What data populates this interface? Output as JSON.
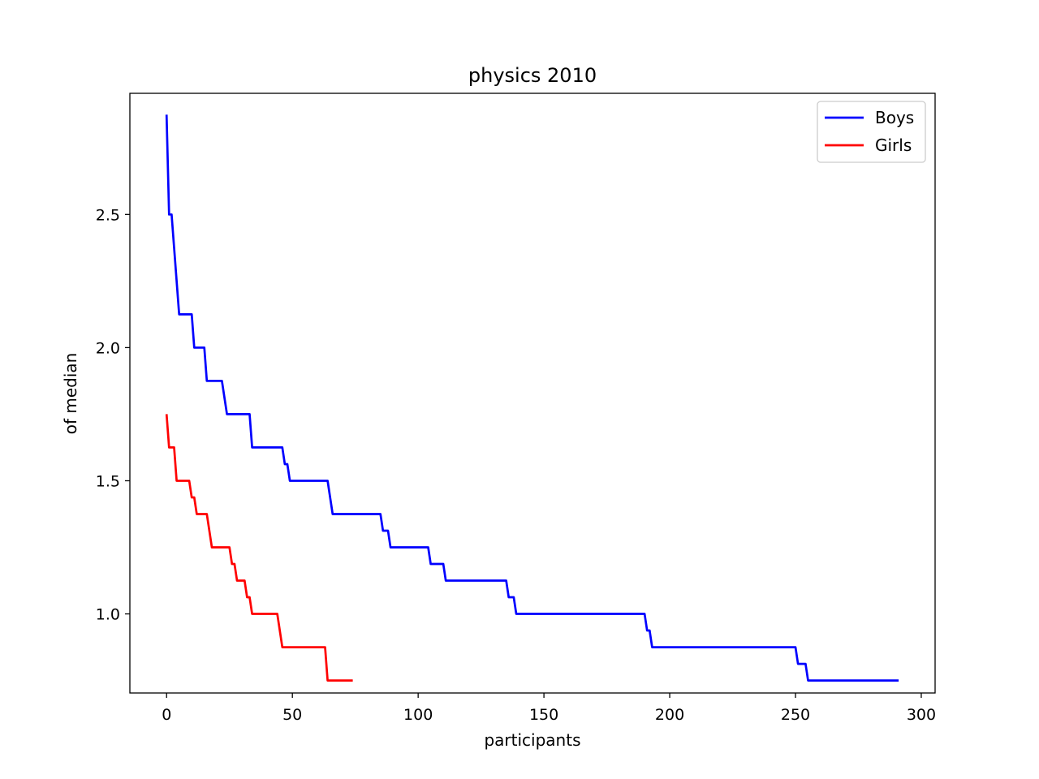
{
  "chart_data": {
    "type": "line",
    "title": "physics 2010",
    "xlabel": "participants",
    "ylabel": "of median",
    "xlim": [
      -14.6,
      305.5
    ],
    "ylim": [
      0.703,
      2.955
    ],
    "xticks": [
      0,
      50,
      100,
      150,
      200,
      250,
      300
    ],
    "yticks": [
      1.0,
      1.5,
      2.0,
      2.5
    ],
    "ytick_labels": [
      "1.0",
      "1.5",
      "2.0",
      "2.5"
    ],
    "grid": false,
    "legend_position": "top-right",
    "series": [
      {
        "name": "Boys",
        "color": "#0000ff",
        "points": [
          [
            0,
            2.875
          ],
          [
            1,
            2.5
          ],
          [
            2,
            2.5
          ],
          [
            5,
            2.125
          ],
          [
            10,
            2.125
          ],
          [
            11,
            2.0
          ],
          [
            15,
            2.0
          ],
          [
            16,
            1.875
          ],
          [
            22,
            1.875
          ],
          [
            24,
            1.75
          ],
          [
            33,
            1.75
          ],
          [
            34,
            1.625
          ],
          [
            46,
            1.625
          ],
          [
            47,
            1.5625
          ],
          [
            48,
            1.5625
          ],
          [
            49,
            1.5
          ],
          [
            64,
            1.5
          ],
          [
            66,
            1.375
          ],
          [
            85,
            1.375
          ],
          [
            86,
            1.3125
          ],
          [
            88,
            1.3125
          ],
          [
            89,
            1.25
          ],
          [
            104,
            1.25
          ],
          [
            105,
            1.1875
          ],
          [
            110,
            1.1875
          ],
          [
            111,
            1.125
          ],
          [
            135,
            1.125
          ],
          [
            136,
            1.0625
          ],
          [
            138,
            1.0625
          ],
          [
            139,
            1.0
          ],
          [
            190,
            1.0
          ],
          [
            191,
            0.9375
          ],
          [
            192,
            0.9375
          ],
          [
            193,
            0.875
          ],
          [
            250,
            0.875
          ],
          [
            251,
            0.8125
          ],
          [
            254,
            0.8125
          ],
          [
            255,
            0.75
          ],
          [
            291,
            0.75
          ]
        ]
      },
      {
        "name": "Girls",
        "color": "#ff0000",
        "points": [
          [
            0,
            1.75
          ],
          [
            1,
            1.625
          ],
          [
            3,
            1.625
          ],
          [
            4,
            1.5
          ],
          [
            9,
            1.5
          ],
          [
            10,
            1.4375
          ],
          [
            11,
            1.4375
          ],
          [
            12,
            1.375
          ],
          [
            16,
            1.375
          ],
          [
            18,
            1.25
          ],
          [
            25,
            1.25
          ],
          [
            26,
            1.1875
          ],
          [
            27,
            1.1875
          ],
          [
            28,
            1.125
          ],
          [
            31,
            1.125
          ],
          [
            32,
            1.0625
          ],
          [
            33,
            1.0625
          ],
          [
            34,
            1.0
          ],
          [
            44,
            1.0
          ],
          [
            46,
            0.875
          ],
          [
            63,
            0.875
          ],
          [
            64,
            0.75
          ],
          [
            74,
            0.75
          ]
        ]
      }
    ]
  }
}
